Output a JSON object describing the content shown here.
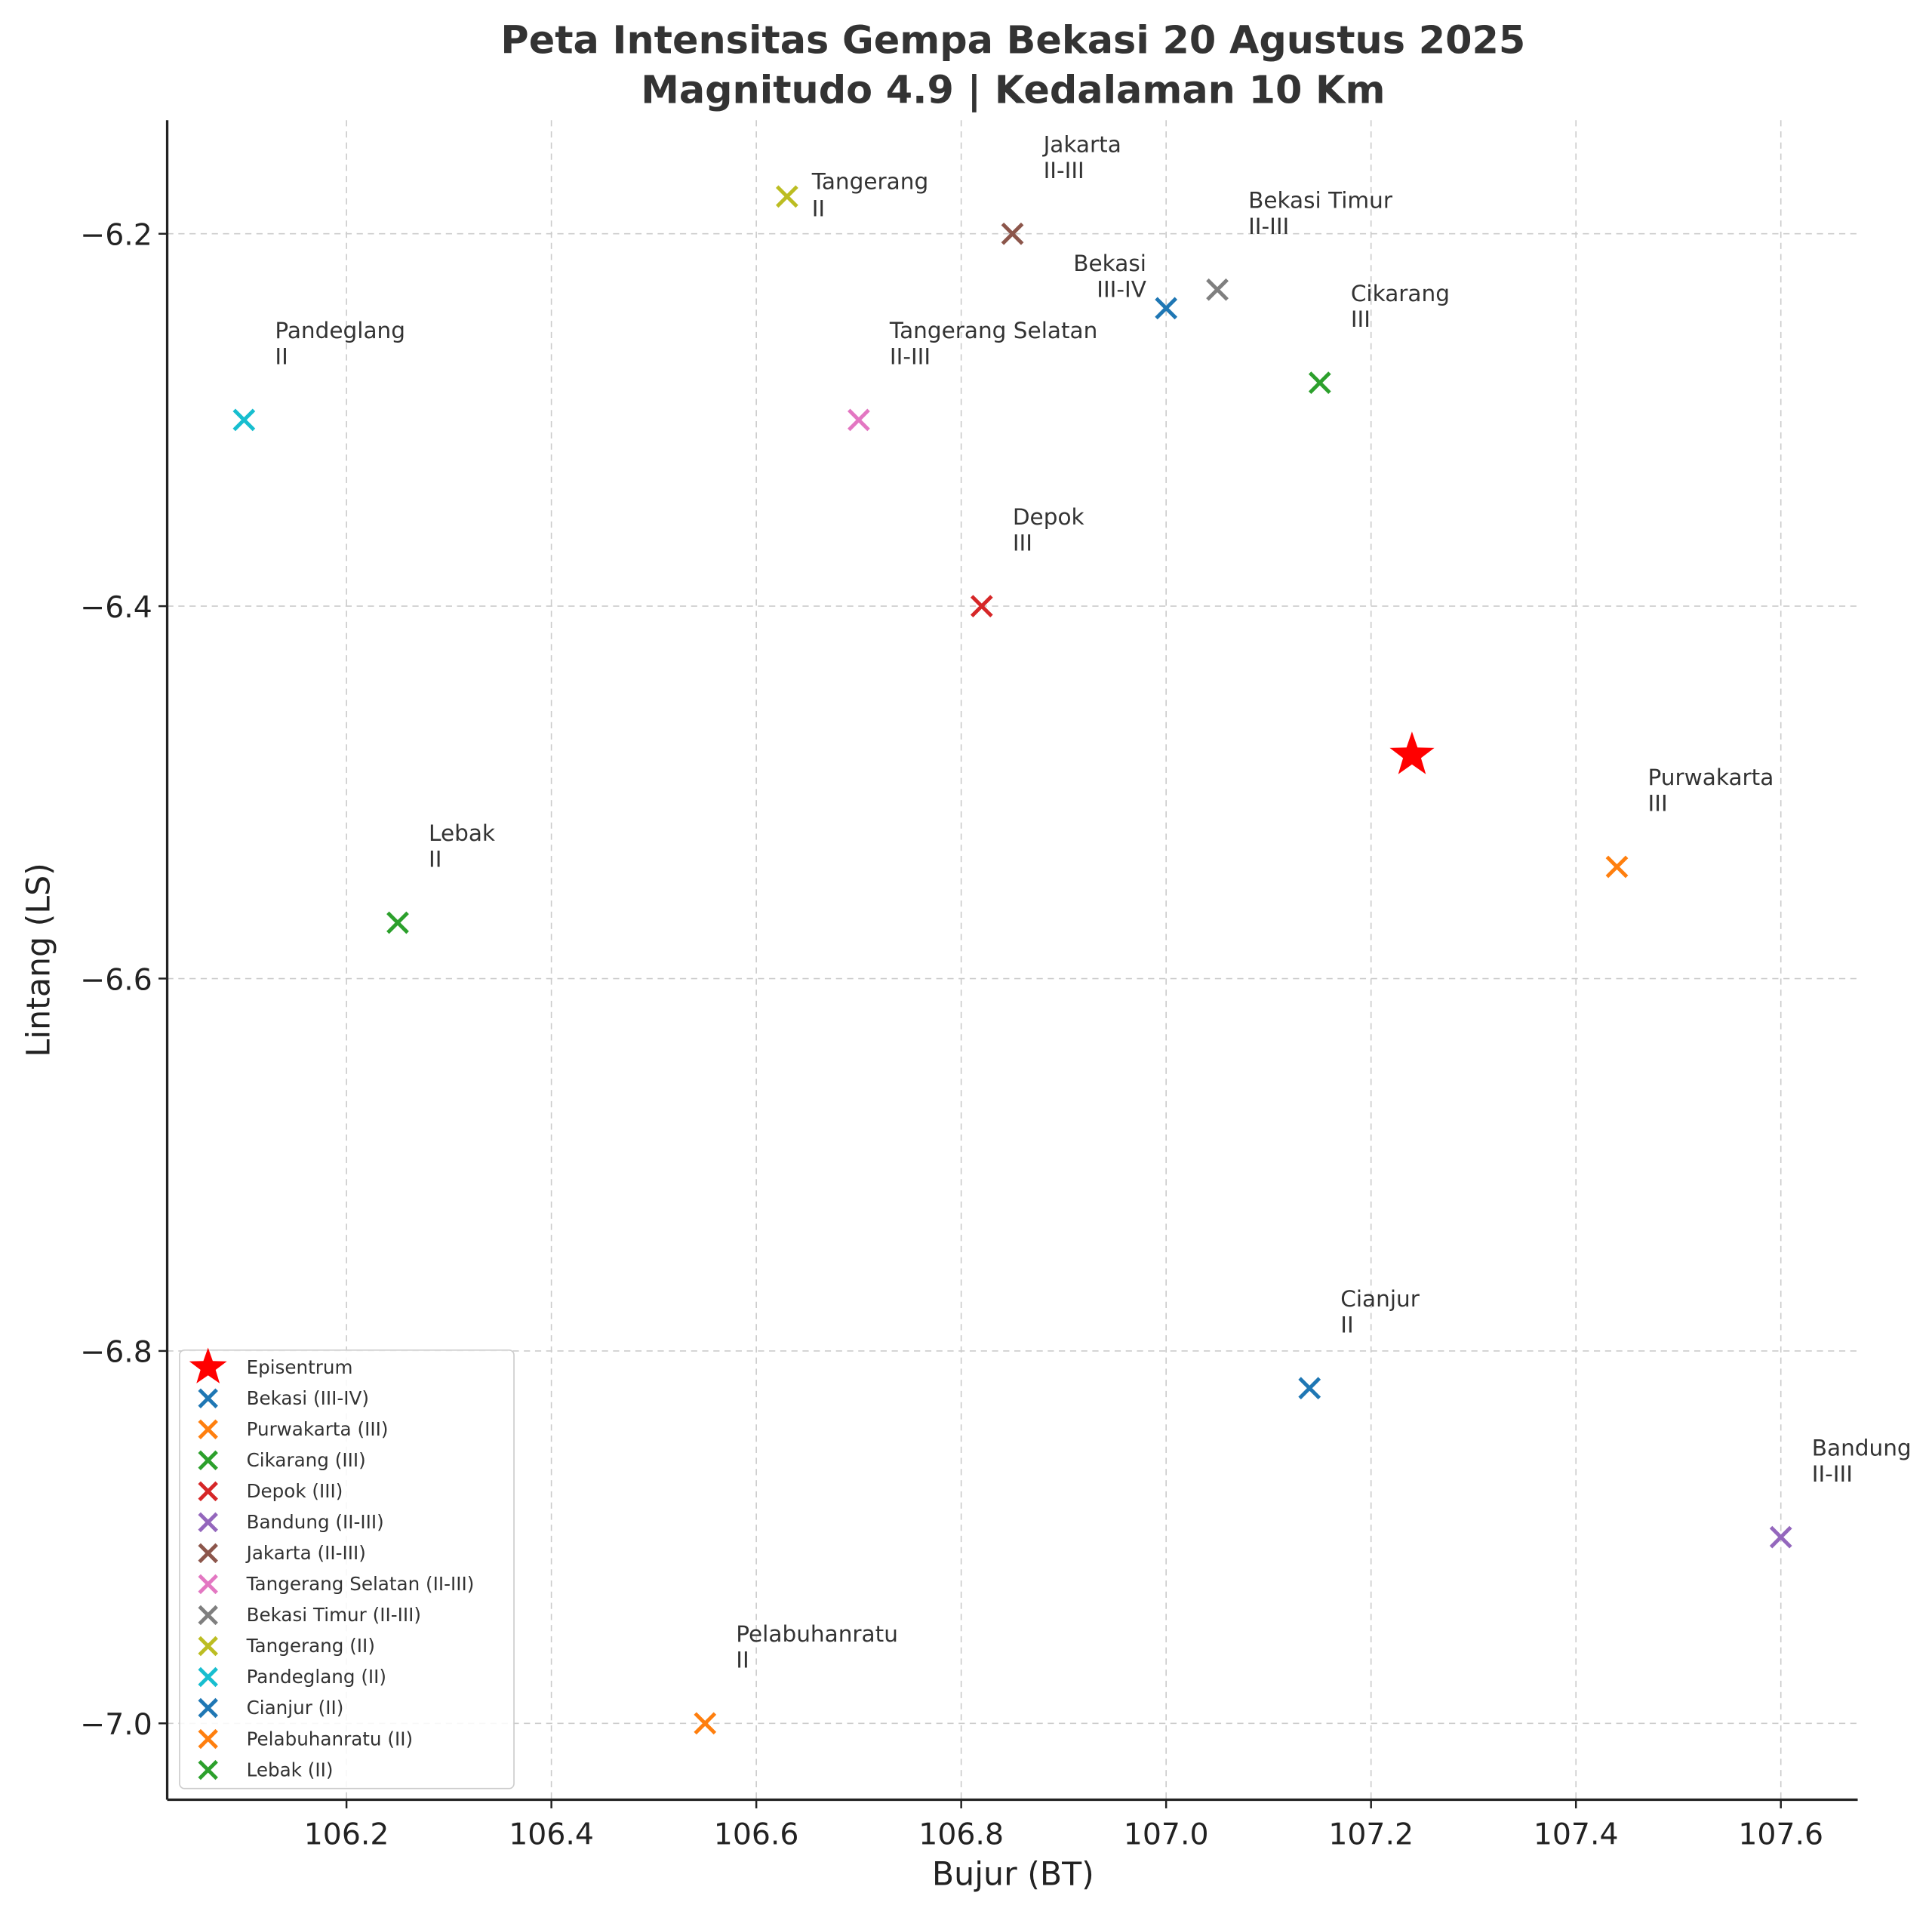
{
  "chart_data": {
    "type": "scatter",
    "title": "Peta Intensitas Gempa Bekasi 20 Agustus 2025",
    "subtitle": "Magnitudo 4.9 | Kedalaman 10 Km",
    "xlabel": "Bujur (BT)",
    "ylabel": "Lintang (LS)",
    "xlim": [
      106.025,
      107.675
    ],
    "ylim": [
      -7.041,
      -6.139
    ],
    "xticks": [
      106.2,
      106.4,
      106.6,
      106.8,
      107.0,
      107.2,
      107.4,
      107.6
    ],
    "xtick_labels": [
      "106.2",
      "106.4",
      "106.6",
      "106.8",
      "107.0",
      "107.2",
      "107.4",
      "107.6"
    ],
    "yticks": [
      -6.2,
      -6.4,
      -6.6,
      -6.8,
      -7.0
    ],
    "ytick_labels": [
      "−6.2",
      "−6.4",
      "−6.6",
      "−6.8",
      "−7.0"
    ],
    "grid": true,
    "legend_placement": "lower-left",
    "epicenter": {
      "name": "Episentrum",
      "x": 107.24,
      "y": -6.48,
      "color": "#ff0000",
      "marker": "star"
    },
    "series": [
      {
        "name": "Bekasi",
        "intensity": "III-IV",
        "legend": "Bekasi (III-IV)",
        "x": 107.0,
        "y": -6.24,
        "color": "#1f77b4"
      },
      {
        "name": "Purwakarta",
        "intensity": "III",
        "legend": "Purwakarta (III)",
        "x": 107.44,
        "y": -6.54,
        "color": "#ff7f0e"
      },
      {
        "name": "Cikarang",
        "intensity": "III",
        "legend": "Cikarang (III)",
        "x": 107.15,
        "y": -6.28,
        "color": "#2ca02c"
      },
      {
        "name": "Depok",
        "intensity": "III",
        "legend": "Depok (III)",
        "x": 106.82,
        "y": -6.4,
        "color": "#d62728"
      },
      {
        "name": "Bandung",
        "intensity": "II-III",
        "legend": "Bandung (II-III)",
        "x": 107.6,
        "y": -6.9,
        "color": "#9467bd"
      },
      {
        "name": "Jakarta",
        "intensity": "II-III",
        "legend": "Jakarta (II-III)",
        "x": 106.85,
        "y": -6.2,
        "color": "#8c564b"
      },
      {
        "name": "Tangerang Selatan",
        "intensity": "II-III",
        "legend": "Tangerang Selatan (II-III)",
        "x": 106.7,
        "y": -6.3,
        "color": "#e377c2"
      },
      {
        "name": "Bekasi Timur",
        "intensity": "II-III",
        "legend": "Bekasi Timur (II-III)",
        "x": 107.05,
        "y": -6.23,
        "color": "#7f7f7f"
      },
      {
        "name": "Tangerang",
        "intensity": "II",
        "legend": "Tangerang (II)",
        "x": 106.63,
        "y": -6.18,
        "color": "#bcbd22"
      },
      {
        "name": "Pandeglang",
        "intensity": "II",
        "legend": "Pandeglang (II)",
        "x": 106.1,
        "y": -6.3,
        "color": "#17becf"
      },
      {
        "name": "Cianjur",
        "intensity": "II",
        "legend": "Cianjur (II)",
        "x": 107.14,
        "y": -6.82,
        "color": "#1f77b4"
      },
      {
        "name": "Pelabuhanratu",
        "intensity": "II",
        "legend": "Pelabuhanratu (II)",
        "x": 106.55,
        "y": -7.0,
        "color": "#ff7f0e"
      },
      {
        "name": "Lebak",
        "intensity": "II",
        "legend": "Lebak (II)",
        "x": 106.25,
        "y": -6.57,
        "color": "#2ca02c"
      }
    ]
  }
}
